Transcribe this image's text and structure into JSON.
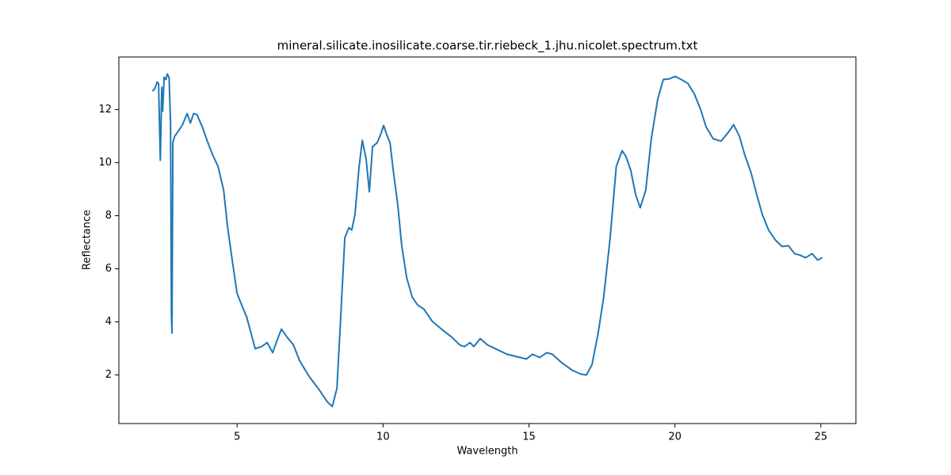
{
  "chart_data": {
    "type": "line",
    "title": "mineral.silicate.inosilicate.coarse.tir.riebeck_1.jhu.nicolet.spectrum.txt",
    "x_label": "Wavelength",
    "y_label": "Reflectance",
    "color": "#1f77b4",
    "grid": false,
    "xlim": [
      0.95,
      26.2
    ],
    "ylim": [
      0.17,
      13.98
    ],
    "xticks": [
      5,
      10,
      15,
      20,
      25
    ],
    "yticks": [
      2,
      4,
      6,
      8,
      10,
      12
    ],
    "x": [
      2.1,
      2.18,
      2.26,
      2.31,
      2.37,
      2.42,
      2.45,
      2.5,
      2.56,
      2.61,
      2.67,
      2.72,
      2.75,
      2.77,
      2.8,
      2.86,
      2.99,
      3.13,
      3.29,
      3.4,
      3.51,
      3.62,
      3.81,
      4.0,
      4.16,
      4.35,
      4.54,
      4.67,
      4.84,
      5.0,
      5.16,
      5.33,
      5.46,
      5.62,
      5.84,
      6.03,
      6.22,
      6.36,
      6.52,
      6.71,
      6.93,
      7.14,
      7.47,
      7.82,
      8.09,
      8.26,
      8.42,
      8.55,
      8.69,
      8.83,
      8.93,
      9.04,
      9.18,
      9.29,
      9.42,
      9.53,
      9.64,
      9.8,
      9.91,
      10.02,
      10.13,
      10.24,
      10.35,
      10.51,
      10.64,
      10.81,
      11.0,
      11.19,
      11.4,
      11.68,
      12.0,
      12.35,
      12.63,
      12.79,
      12.98,
      13.11,
      13.33,
      13.58,
      13.85,
      14.25,
      14.58,
      14.91,
      15.12,
      15.37,
      15.61,
      15.8,
      16.1,
      16.48,
      16.78,
      16.97,
      17.16,
      17.37,
      17.56,
      17.78,
      17.99,
      18.19,
      18.32,
      18.49,
      18.65,
      18.81,
      19.0,
      19.19,
      19.41,
      19.6,
      19.82,
      20.01,
      20.22,
      20.44,
      20.66,
      20.88,
      21.07,
      21.31,
      21.58,
      21.8,
      22.01,
      22.21,
      22.39,
      22.61,
      22.8,
      22.99,
      23.21,
      23.43,
      23.67,
      23.89,
      24.1,
      24.29,
      24.48,
      24.7,
      24.89,
      25.05
    ],
    "values": [
      12.69,
      12.78,
      13.04,
      12.98,
      10.09,
      12.84,
      11.94,
      13.22,
      13.13,
      13.34,
      13.21,
      11.49,
      4.33,
      3.58,
      10.75,
      10.99,
      11.19,
      11.43,
      11.85,
      11.49,
      11.85,
      11.82,
      11.34,
      10.75,
      10.3,
      9.85,
      8.96,
      7.61,
      6.27,
      5.07,
      4.63,
      4.18,
      3.64,
      2.99,
      3.07,
      3.22,
      2.84,
      3.28,
      3.73,
      3.43,
      3.13,
      2.54,
      1.94,
      1.43,
      0.99,
      0.81,
      1.49,
      4.18,
      7.16,
      7.55,
      7.46,
      8.06,
      9.85,
      10.84,
      10.15,
      8.9,
      10.6,
      10.75,
      11.04,
      11.4,
      11.04,
      10.75,
      9.7,
      8.36,
      6.87,
      5.67,
      4.93,
      4.63,
      4.48,
      4.03,
      3.73,
      3.43,
      3.13,
      3.07,
      3.22,
      3.07,
      3.37,
      3.13,
      2.99,
      2.78,
      2.69,
      2.6,
      2.78,
      2.66,
      2.84,
      2.78,
      2.48,
      2.18,
      2.03,
      2.0,
      2.39,
      3.58,
      4.93,
      7.16,
      9.85,
      10.45,
      10.24,
      9.7,
      8.81,
      8.3,
      8.96,
      10.9,
      12.39,
      13.13,
      13.16,
      13.25,
      13.13,
      12.99,
      12.6,
      12.0,
      11.34,
      10.9,
      10.81,
      11.1,
      11.43,
      10.99,
      10.3,
      9.61,
      8.81,
      8.06,
      7.46,
      7.1,
      6.84,
      6.87,
      6.57,
      6.51,
      6.42,
      6.57,
      6.33,
      6.42
    ]
  }
}
